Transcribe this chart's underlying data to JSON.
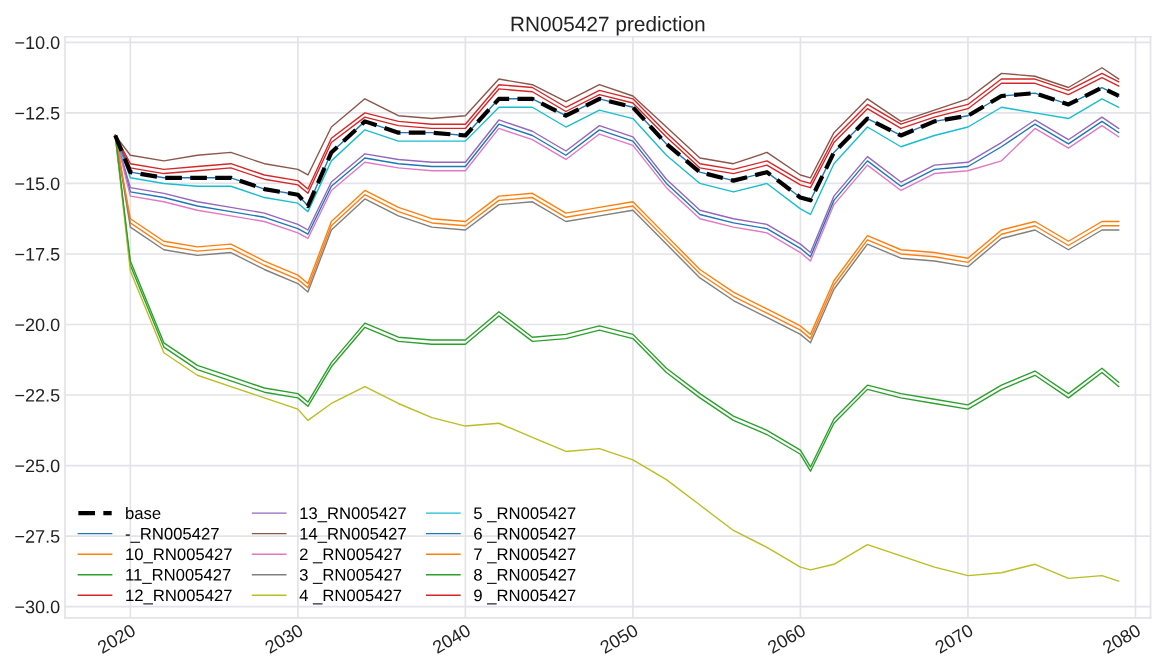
{
  "chart_data": {
    "type": "line",
    "title": "RN005427 prediction",
    "x": [
      2019.1,
      2020,
      2022,
      2024,
      2026,
      2028,
      2030,
      2030.6,
      2032,
      2034,
      2036,
      2038,
      2040,
      2042,
      2044,
      2046,
      2048,
      2050,
      2052,
      2054,
      2056,
      2058,
      2060,
      2060.6,
      2062,
      2064,
      2066,
      2068,
      2070,
      2072,
      2074,
      2076,
      2078,
      2079
    ],
    "xlim": [
      2016.1,
      2080.9
    ],
    "xticks": [
      2020,
      2030,
      2040,
      2050,
      2060,
      2070,
      2080
    ],
    "ylim": [
      -30.4,
      -9.8
    ],
    "yticks": [
      {
        "value": -30,
        "label": "−30.0"
      },
      {
        "value": -27.5,
        "label": "−27.5"
      },
      {
        "value": -25,
        "label": "−25.0"
      },
      {
        "value": -22.5,
        "label": "−22.5"
      },
      {
        "value": -20,
        "label": "−20.0"
      },
      {
        "value": -17.5,
        "label": "−17.5"
      },
      {
        "value": -15,
        "label": "−15.0"
      },
      {
        "value": -12.5,
        "label": "−12.5"
      },
      {
        "value": -10,
        "label": "−10.0"
      }
    ],
    "grid": true,
    "legend": "bottom left",
    "marker": "none",
    "series": [
      {
        "name": "base",
        "color": "#000000",
        "line_style": "dashed",
        "values": [
          -13.3,
          -14.6,
          -14.8,
          -14.8,
          -14.8,
          -15.2,
          -15.4,
          -15.8,
          -13.9,
          -12.8,
          -13.2,
          -13.2,
          -13.3,
          -12.0,
          -12.0,
          -12.6,
          -12.0,
          -12.3,
          -13.6,
          -14.6,
          -14.9,
          -14.6,
          -15.5,
          -15.6,
          -13.9,
          -12.7,
          -13.3,
          -12.8,
          -12.6,
          -11.9,
          -11.8,
          -12.2,
          -11.6,
          -11.9
        ]
      },
      {
        "name": "-_RN005427",
        "color": "#1f77b4",
        "values": [
          -13.3,
          -15.3,
          -15.5,
          -15.8,
          -16.0,
          -16.2,
          -16.6,
          -16.8,
          -15.1,
          -14.1,
          -14.3,
          -14.4,
          -14.4,
          -12.9,
          -13.3,
          -14.0,
          -13.1,
          -13.5,
          -15.0,
          -16.1,
          -16.4,
          -16.6,
          -17.3,
          -17.6,
          -15.6,
          -14.2,
          -15.1,
          -14.5,
          -14.4,
          -13.7,
          -12.9,
          -13.6,
          -12.8,
          -13.2
        ]
      },
      {
        "name": "10_RN005427",
        "color": "#ff7f0e",
        "values": [
          -13.3,
          -16.4,
          -17.2,
          -17.4,
          -17.3,
          -17.9,
          -18.4,
          -18.7,
          -16.5,
          -15.4,
          -16.0,
          -16.4,
          -16.5,
          -15.6,
          -15.5,
          -16.2,
          -16.0,
          -15.8,
          -17.0,
          -18.2,
          -19.0,
          -19.6,
          -20.2,
          -20.5,
          -18.6,
          -17.0,
          -17.5,
          -17.6,
          -17.8,
          -16.8,
          -16.5,
          -17.2,
          -16.5,
          -16.5
        ]
      },
      {
        "name": "11_RN005427",
        "color": "#2ca02c",
        "values": [
          -13.3,
          -17.9,
          -20.8,
          -21.6,
          -22.0,
          -22.4,
          -22.6,
          -22.9,
          -21.5,
          -20.1,
          -20.6,
          -20.7,
          -20.7,
          -19.7,
          -20.6,
          -20.5,
          -20.2,
          -20.5,
          -21.7,
          -22.6,
          -23.4,
          -23.9,
          -24.6,
          -25.2,
          -23.5,
          -22.3,
          -22.6,
          -22.8,
          -23.0,
          -22.3,
          -21.8,
          -22.6,
          -21.7,
          -22.2
        ]
      },
      {
        "name": "12_RN005427",
        "color": "#d62728",
        "values": [
          -13.3,
          -14.3,
          -14.5,
          -14.4,
          -14.3,
          -14.7,
          -14.9,
          -15.2,
          -13.4,
          -12.5,
          -12.8,
          -12.9,
          -12.9,
          -11.5,
          -11.6,
          -12.3,
          -11.7,
          -12.0,
          -13.2,
          -14.3,
          -14.5,
          -14.2,
          -14.9,
          -15.0,
          -13.4,
          -12.2,
          -12.9,
          -12.5,
          -12.2,
          -11.3,
          -11.3,
          -11.7,
          -11.1,
          -11.4
        ]
      },
      {
        "name": "13_RN005427",
        "color": "#9467bd",
        "values": [
          -13.3,
          -15.15,
          -15.35,
          -15.65,
          -15.85,
          -16.05,
          -16.45,
          -16.65,
          -14.95,
          -13.95,
          -14.15,
          -14.25,
          -14.25,
          -12.75,
          -13.15,
          -13.85,
          -12.95,
          -13.35,
          -14.85,
          -15.95,
          -16.25,
          -16.45,
          -17.15,
          -17.45,
          -15.45,
          -14.05,
          -14.95,
          -14.35,
          -14.25,
          -13.55,
          -12.75,
          -13.45,
          -12.65,
          -13.05
        ]
      },
      {
        "name": "14_RN005427",
        "color": "#8c564b",
        "values": [
          -13.3,
          -14.0,
          -14.2,
          -14.0,
          -13.9,
          -14.3,
          -14.5,
          -14.7,
          -13.0,
          -12.0,
          -12.6,
          -12.7,
          -12.6,
          -11.3,
          -11.5,
          -12.1,
          -11.5,
          -11.9,
          -13.0,
          -14.1,
          -14.3,
          -13.9,
          -14.7,
          -14.8,
          -13.2,
          -12.0,
          -12.8,
          -12.4,
          -12.0,
          -11.1,
          -11.2,
          -11.6,
          -10.9,
          -11.3
        ]
      },
      {
        "name": "2 _RN005427",
        "color": "#e377c2",
        "values": [
          -13.3,
          -15.45,
          -15.65,
          -15.95,
          -16.15,
          -16.35,
          -16.75,
          -16.95,
          -15.25,
          -14.25,
          -14.45,
          -14.55,
          -14.55,
          -13.05,
          -13.45,
          -14.15,
          -13.25,
          -13.65,
          -15.15,
          -16.25,
          -16.55,
          -16.75,
          -17.45,
          -17.75,
          -15.75,
          -14.35,
          -15.25,
          -14.65,
          -14.55,
          -14.2,
          -13.05,
          -13.75,
          -12.95,
          -13.35
        ]
      },
      {
        "name": "3 _RN005427",
        "color": "#7f7f7f",
        "values": [
          -13.3,
          -16.55,
          -17.35,
          -17.55,
          -17.45,
          -18.05,
          -18.55,
          -18.85,
          -16.65,
          -15.55,
          -16.15,
          -16.55,
          -16.65,
          -15.75,
          -15.65,
          -16.35,
          -16.15,
          -15.95,
          -17.15,
          -18.35,
          -19.15,
          -19.75,
          -20.35,
          -20.65,
          -18.75,
          -17.15,
          -17.65,
          -17.75,
          -17.95,
          -16.95,
          -16.65,
          -17.35,
          -16.65,
          -16.65
        ]
      },
      {
        "name": "4 _RN005427",
        "color": "#bcbd22",
        "values": [
          -13.3,
          -18.1,
          -21.0,
          -21.8,
          -22.2,
          -22.6,
          -23.0,
          -23.4,
          -22.8,
          -22.2,
          -22.8,
          -23.3,
          -23.6,
          -23.5,
          -24.0,
          -24.5,
          -24.4,
          -24.8,
          -25.5,
          -26.4,
          -27.3,
          -27.9,
          -28.6,
          -28.7,
          -28.5,
          -27.8,
          -28.2,
          -28.6,
          -28.9,
          -28.8,
          -28.5,
          -29.0,
          -28.9,
          -29.1
        ]
      },
      {
        "name": "5 _RN005427",
        "color": "#17becf",
        "values": [
          -13.3,
          -14.8,
          -15.0,
          -15.1,
          -15.1,
          -15.5,
          -15.7,
          -16.0,
          -14.2,
          -13.1,
          -13.5,
          -13.5,
          -13.5,
          -12.3,
          -12.3,
          -13.0,
          -12.4,
          -12.7,
          -14.0,
          -15.0,
          -15.3,
          -15.0,
          -15.9,
          -16.1,
          -14.3,
          -13.0,
          -13.7,
          -13.3,
          -13.0,
          -12.3,
          -12.5,
          -12.7,
          -12.0,
          -12.3
        ]
      },
      {
        "name": "6 _RN005427",
        "color": "#1f77b4",
        "values": [
          -13.3,
          -14.6,
          -14.8,
          -14.8,
          -14.8,
          -15.2,
          -15.4,
          -15.8,
          -13.9,
          -12.8,
          -13.2,
          -13.2,
          -13.3,
          -12.0,
          -12.0,
          -12.6,
          -12.0,
          -12.3,
          -13.6,
          -14.6,
          -14.9,
          -14.6,
          -15.5,
          -15.6,
          -13.9,
          -12.7,
          -13.3,
          -12.8,
          -12.6,
          -11.9,
          -11.8,
          -12.2,
          -11.6,
          -11.9
        ]
      },
      {
        "name": "7 _RN005427",
        "color": "#ff7f0e",
        "values": [
          -13.3,
          -16.25,
          -17.05,
          -17.25,
          -17.15,
          -17.75,
          -18.25,
          -18.55,
          -16.35,
          -15.25,
          -15.85,
          -16.25,
          -16.35,
          -15.45,
          -15.35,
          -16.05,
          -15.85,
          -15.65,
          -16.85,
          -18.05,
          -18.85,
          -19.45,
          -20.05,
          -20.35,
          -18.45,
          -16.85,
          -17.35,
          -17.45,
          -17.65,
          -16.65,
          -16.35,
          -17.05,
          -16.35,
          -16.35
        ]
      },
      {
        "name": "8 _RN005427",
        "color": "#2ca02c",
        "values": [
          -13.3,
          -17.75,
          -20.65,
          -21.45,
          -21.85,
          -22.25,
          -22.45,
          -22.75,
          -21.35,
          -19.95,
          -20.45,
          -20.55,
          -20.55,
          -19.55,
          -20.45,
          -20.35,
          -20.05,
          -20.35,
          -21.55,
          -22.45,
          -23.25,
          -23.75,
          -24.45,
          -25.05,
          -23.35,
          -22.15,
          -22.45,
          -22.65,
          -22.85,
          -22.15,
          -21.65,
          -22.45,
          -21.55,
          -22.05
        ]
      },
      {
        "name": "9 _RN005427",
        "color": "#d62728",
        "values": [
          -13.3,
          -14.45,
          -14.65,
          -14.55,
          -14.45,
          -14.85,
          -15.05,
          -15.35,
          -13.55,
          -12.65,
          -12.95,
          -13.05,
          -13.05,
          -11.65,
          -11.75,
          -12.45,
          -11.85,
          -12.15,
          -13.35,
          -14.45,
          -14.65,
          -14.35,
          -15.05,
          -15.15,
          -13.55,
          -12.35,
          -13.05,
          -12.65,
          -12.35,
          -11.45,
          -11.45,
          -11.85,
          -11.25,
          -11.55
        ]
      }
    ]
  }
}
